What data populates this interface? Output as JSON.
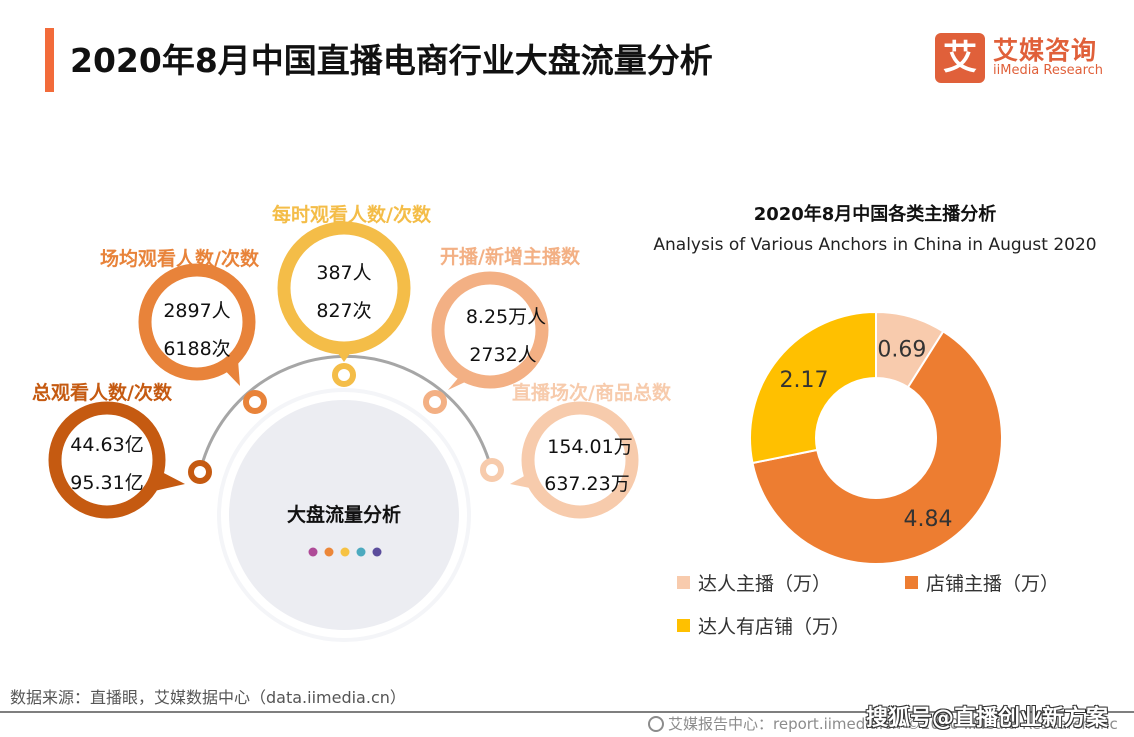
{
  "header": {
    "title": "2020年8月中国直播电商行业大盘流量分析",
    "accent_color": "#F26B3A"
  },
  "logo": {
    "glyph": "艾",
    "name_cn": "艾媒咨询",
    "name_en": "iiMedia Research",
    "color": "#E0603A"
  },
  "infographic": {
    "center_label": "大盘流量分析",
    "center_dots": [
      "#AE4A97",
      "#EC8739",
      "#F6C243",
      "#4CAABF",
      "#5B4D9C"
    ],
    "bubbles": [
      {
        "label": "总观看人数/次数",
        "line1": "44.63亿",
        "line2": "95.31亿",
        "color": "#C55A11"
      },
      {
        "label": "场均观看人数/次数",
        "line1": "2897人",
        "line2": "6188次",
        "color": "#E8833A"
      },
      {
        "label": "每时观看人数/次数",
        "line1": "387人",
        "line2": "827次",
        "color": "#F4BD48"
      },
      {
        "label": "开播/新增主播数",
        "line1": "8.25万人",
        "line2": "2732人",
        "color": "#F3B084"
      },
      {
        "label": "直播场次/商品总数",
        "line1": "154.01万",
        "line2": "637.23万",
        "color": "#F7CBAC"
      }
    ]
  },
  "chart_data": {
    "type": "pie",
    "variant": "donut",
    "title": "2020年8月中国各类主播分析",
    "subtitle": "Analysis of Various Anchors in China in August 2020",
    "categories": [
      "达人主播（万）",
      "店铺主播（万）",
      "达人有店铺（万）"
    ],
    "values": [
      0.69,
      4.84,
      2.17
    ],
    "colors": [
      "#F8CBAD",
      "#ED7D31",
      "#FFC000"
    ],
    "data_labels": [
      "0.69",
      "4.84",
      "2.17"
    ],
    "legend_position": "bottom"
  },
  "footer": {
    "source": "数据来源：直播眼，艾媒数据中心（data.iimedia.cn）",
    "report_center": "艾媒报告中心：report.iimedia.cn ©2020 iiMedia Research Inc",
    "watermark": "搜狐号@直播创业新方案"
  }
}
